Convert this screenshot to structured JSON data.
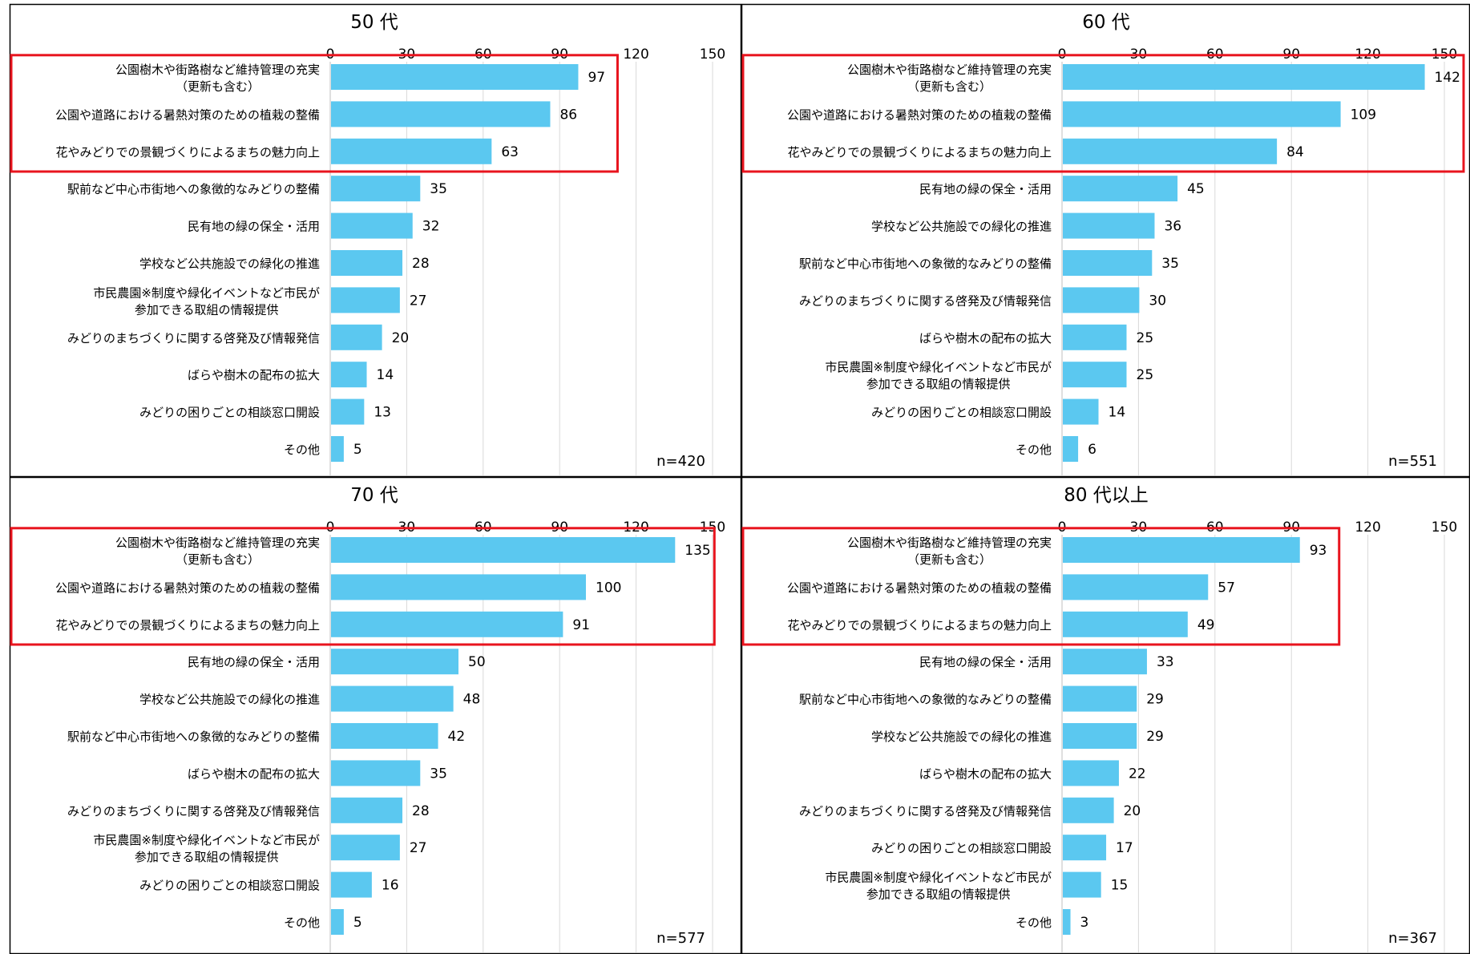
{
  "colors": {
    "bar": "#5BC8F0",
    "highlight_box": "#E8141E",
    "grid": "#D9D9D9",
    "panel_border": "#000000",
    "text": "#000000"
  },
  "chart_data": [
    {
      "type": "bar",
      "orientation": "horizontal",
      "title": "50 代",
      "n_label": "n=420",
      "xlim": [
        0,
        150
      ],
      "ticks": [
        0,
        30,
        60,
        90,
        120,
        150
      ],
      "grid": true,
      "highlight_top": 3,
      "categories": [
        [
          "公園樹木や街路樹など維持管理の充実",
          "（更新も含む）"
        ],
        [
          "公園や道路における暑熱対策のための植栽の整備"
        ],
        [
          "花やみどりでの景観づくりによるまちの魅力向上"
        ],
        [
          "駅前など中心市街地への象徴的なみどりの整備"
        ],
        [
          "民有地の緑の保全・活用"
        ],
        [
          "学校など公共施設での緑化の推進"
        ],
        [
          "市民農園※制度や緑化イベントなど市民が",
          "参加できる取組の情報提供"
        ],
        [
          "みどりのまちづくりに関する啓発及び情報発信"
        ],
        [
          "ばらや樹木の配布の拡大"
        ],
        [
          "みどりの困りごとの相談窓口開設"
        ],
        [
          "その他"
        ]
      ],
      "values": [
        97,
        86,
        63,
        35,
        32,
        28,
        27,
        20,
        14,
        13,
        5
      ]
    },
    {
      "type": "bar",
      "orientation": "horizontal",
      "title": "60 代",
      "n_label": "n=551",
      "xlim": [
        0,
        150
      ],
      "ticks": [
        0,
        30,
        60,
        90,
        120,
        150
      ],
      "grid": true,
      "highlight_top": 3,
      "categories": [
        [
          "公園樹木や街路樹など維持管理の充実",
          "（更新も含む）"
        ],
        [
          "公園や道路における暑熱対策のための植栽の整備"
        ],
        [
          "花やみどりでの景観づくりによるまちの魅力向上"
        ],
        [
          "民有地の緑の保全・活用"
        ],
        [
          "学校など公共施設での緑化の推進"
        ],
        [
          "駅前など中心市街地への象徴的なみどりの整備"
        ],
        [
          "みどりのまちづくりに関する啓発及び情報発信"
        ],
        [
          "ばらや樹木の配布の拡大"
        ],
        [
          "市民農園※制度や緑化イベントなど市民が",
          "参加できる取組の情報提供"
        ],
        [
          "みどりの困りごとの相談窓口開設"
        ],
        [
          "その他"
        ]
      ],
      "values": [
        142,
        109,
        84,
        45,
        36,
        35,
        30,
        25,
        25,
        14,
        6
      ]
    },
    {
      "type": "bar",
      "orientation": "horizontal",
      "title": "70 代",
      "n_label": "n=577",
      "xlim": [
        0,
        150
      ],
      "ticks": [
        0,
        30,
        60,
        90,
        120,
        150
      ],
      "grid": true,
      "highlight_top": 3,
      "categories": [
        [
          "公園樹木や街路樹など維持管理の充実",
          "（更新も含む）"
        ],
        [
          "公園や道路における暑熱対策のための植栽の整備"
        ],
        [
          "花やみどりでの景観づくりによるまちの魅力向上"
        ],
        [
          "民有地の緑の保全・活用"
        ],
        [
          "学校など公共施設での緑化の推進"
        ],
        [
          "駅前など中心市街地への象徴的なみどりの整備"
        ],
        [
          "ばらや樹木の配布の拡大"
        ],
        [
          "みどりのまちづくりに関する啓発及び情報発信"
        ],
        [
          "市民農園※制度や緑化イベントなど市民が",
          "参加できる取組の情報提供"
        ],
        [
          "みどりの困りごとの相談窓口開設"
        ],
        [
          "その他"
        ]
      ],
      "values": [
        135,
        100,
        91,
        50,
        48,
        42,
        35,
        28,
        27,
        16,
        5
      ]
    },
    {
      "type": "bar",
      "orientation": "horizontal",
      "title": "80 代以上",
      "n_label": "n=367",
      "xlim": [
        0,
        150
      ],
      "ticks": [
        0,
        30,
        60,
        90,
        120,
        150
      ],
      "grid": true,
      "highlight_top": 3,
      "categories": [
        [
          "公園樹木や街路樹など維持管理の充実",
          "（更新も含む）"
        ],
        [
          "公園や道路における暑熱対策のための植栽の整備"
        ],
        [
          "花やみどりでの景観づくりによるまちの魅力向上"
        ],
        [
          "民有地の緑の保全・活用"
        ],
        [
          "駅前など中心市街地への象徴的なみどりの整備"
        ],
        [
          "学校など公共施設での緑化の推進"
        ],
        [
          "ばらや樹木の配布の拡大"
        ],
        [
          "みどりのまちづくりに関する啓発及び情報発信"
        ],
        [
          "みどりの困りごとの相談窓口開設"
        ],
        [
          "市民農園※制度や緑化イベントなど市民が",
          "参加できる取組の情報提供"
        ],
        [
          "その他"
        ]
      ],
      "values": [
        93,
        57,
        49,
        33,
        29,
        29,
        22,
        20,
        17,
        15,
        3
      ]
    }
  ]
}
